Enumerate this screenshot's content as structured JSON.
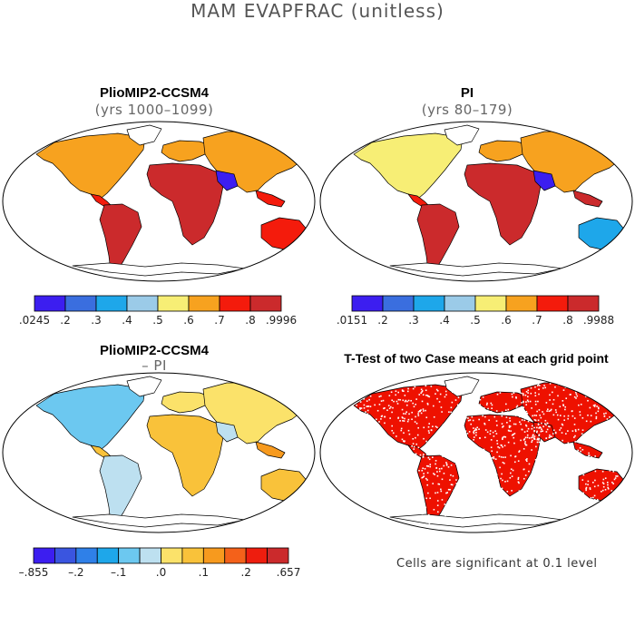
{
  "title": "MAM EVAPFRAC (unitless)",
  "panels": [
    {
      "title": "PlioMIP2-CCSM4",
      "subtitle": "(yrs 1000–1099)",
      "colorbar": {
        "colors": [
          "#3c1ef0",
          "#3a6edf",
          "#1ea7ea",
          "#9bcbe8",
          "#f7ee75",
          "#f7a21f",
          "#f41b0c",
          "#cb2a2c"
        ],
        "labels": [
          ".0245",
          ".2",
          ".3",
          ".4",
          ".5",
          ".6",
          ".7",
          ".8",
          ".9996"
        ]
      }
    },
    {
      "title": "PI",
      "subtitle": "(yrs 80–179)",
      "colorbar": {
        "colors": [
          "#3c1ef0",
          "#3a6edf",
          "#1ea7ea",
          "#9bcbe8",
          "#f7ee75",
          "#f7a21f",
          "#f41b0c",
          "#cb2a2c"
        ],
        "labels": [
          ".0151",
          ".2",
          ".3",
          ".4",
          ".5",
          ".6",
          ".7",
          ".8",
          ".9988"
        ]
      }
    },
    {
      "title": "PlioMIP2-CCSM4",
      "subtitle": "– PI",
      "colorbar": {
        "colors": [
          "#3c1ef0",
          "#3a55e0",
          "#2f80e8",
          "#1ea7ea",
          "#6cc8f0",
          "#bde0f0",
          "#fbe26a",
          "#f9c23a",
          "#f79a1e",
          "#f4611a",
          "#ee1d0e",
          "#cb2a2c"
        ],
        "labels": [
          "–.855",
          "–.2",
          "–.1",
          ".0",
          ".1",
          ".2",
          ".657"
        ]
      }
    },
    {
      "title": "T-Test of two Case means at each grid point",
      "note": "Cells are significant at 0.1 level"
    }
  ]
}
